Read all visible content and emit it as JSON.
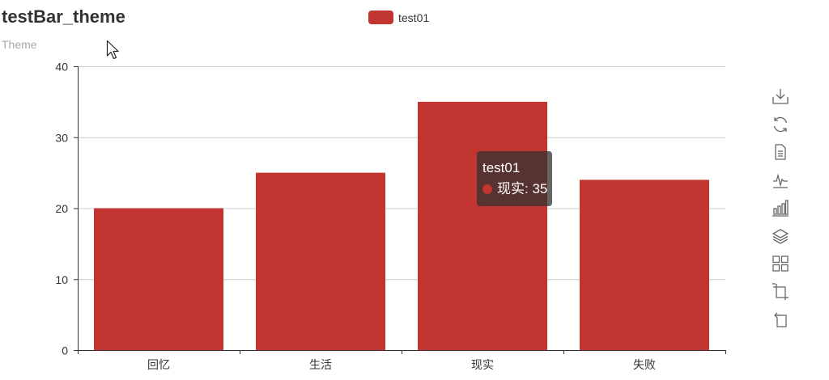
{
  "title": "testBar_theme",
  "subtitle": "Theme",
  "legend": {
    "label": "test01",
    "color": "#c23531"
  },
  "tooltip": {
    "series": "test01",
    "category": "现实",
    "value": "35"
  },
  "toolbox": [
    "save-as-image",
    "restore",
    "data-view",
    "line-chart",
    "bar-chart",
    "stack",
    "tiled",
    "data-zoom",
    "zoom-reset"
  ],
  "chart_data": {
    "type": "bar",
    "title": "testBar_theme",
    "subtitle": "Theme",
    "categories": [
      "回忆",
      "生活",
      "现实",
      "失败"
    ],
    "series": [
      {
        "name": "test01",
        "values": [
          20,
          25,
          35,
          24
        ],
        "color": "#c23531"
      }
    ],
    "ylim": [
      0,
      40
    ],
    "yticks": [
      0,
      10,
      20,
      30,
      40
    ],
    "xlabel": "",
    "ylabel": "",
    "grid": true,
    "legend_position": "top-center"
  }
}
